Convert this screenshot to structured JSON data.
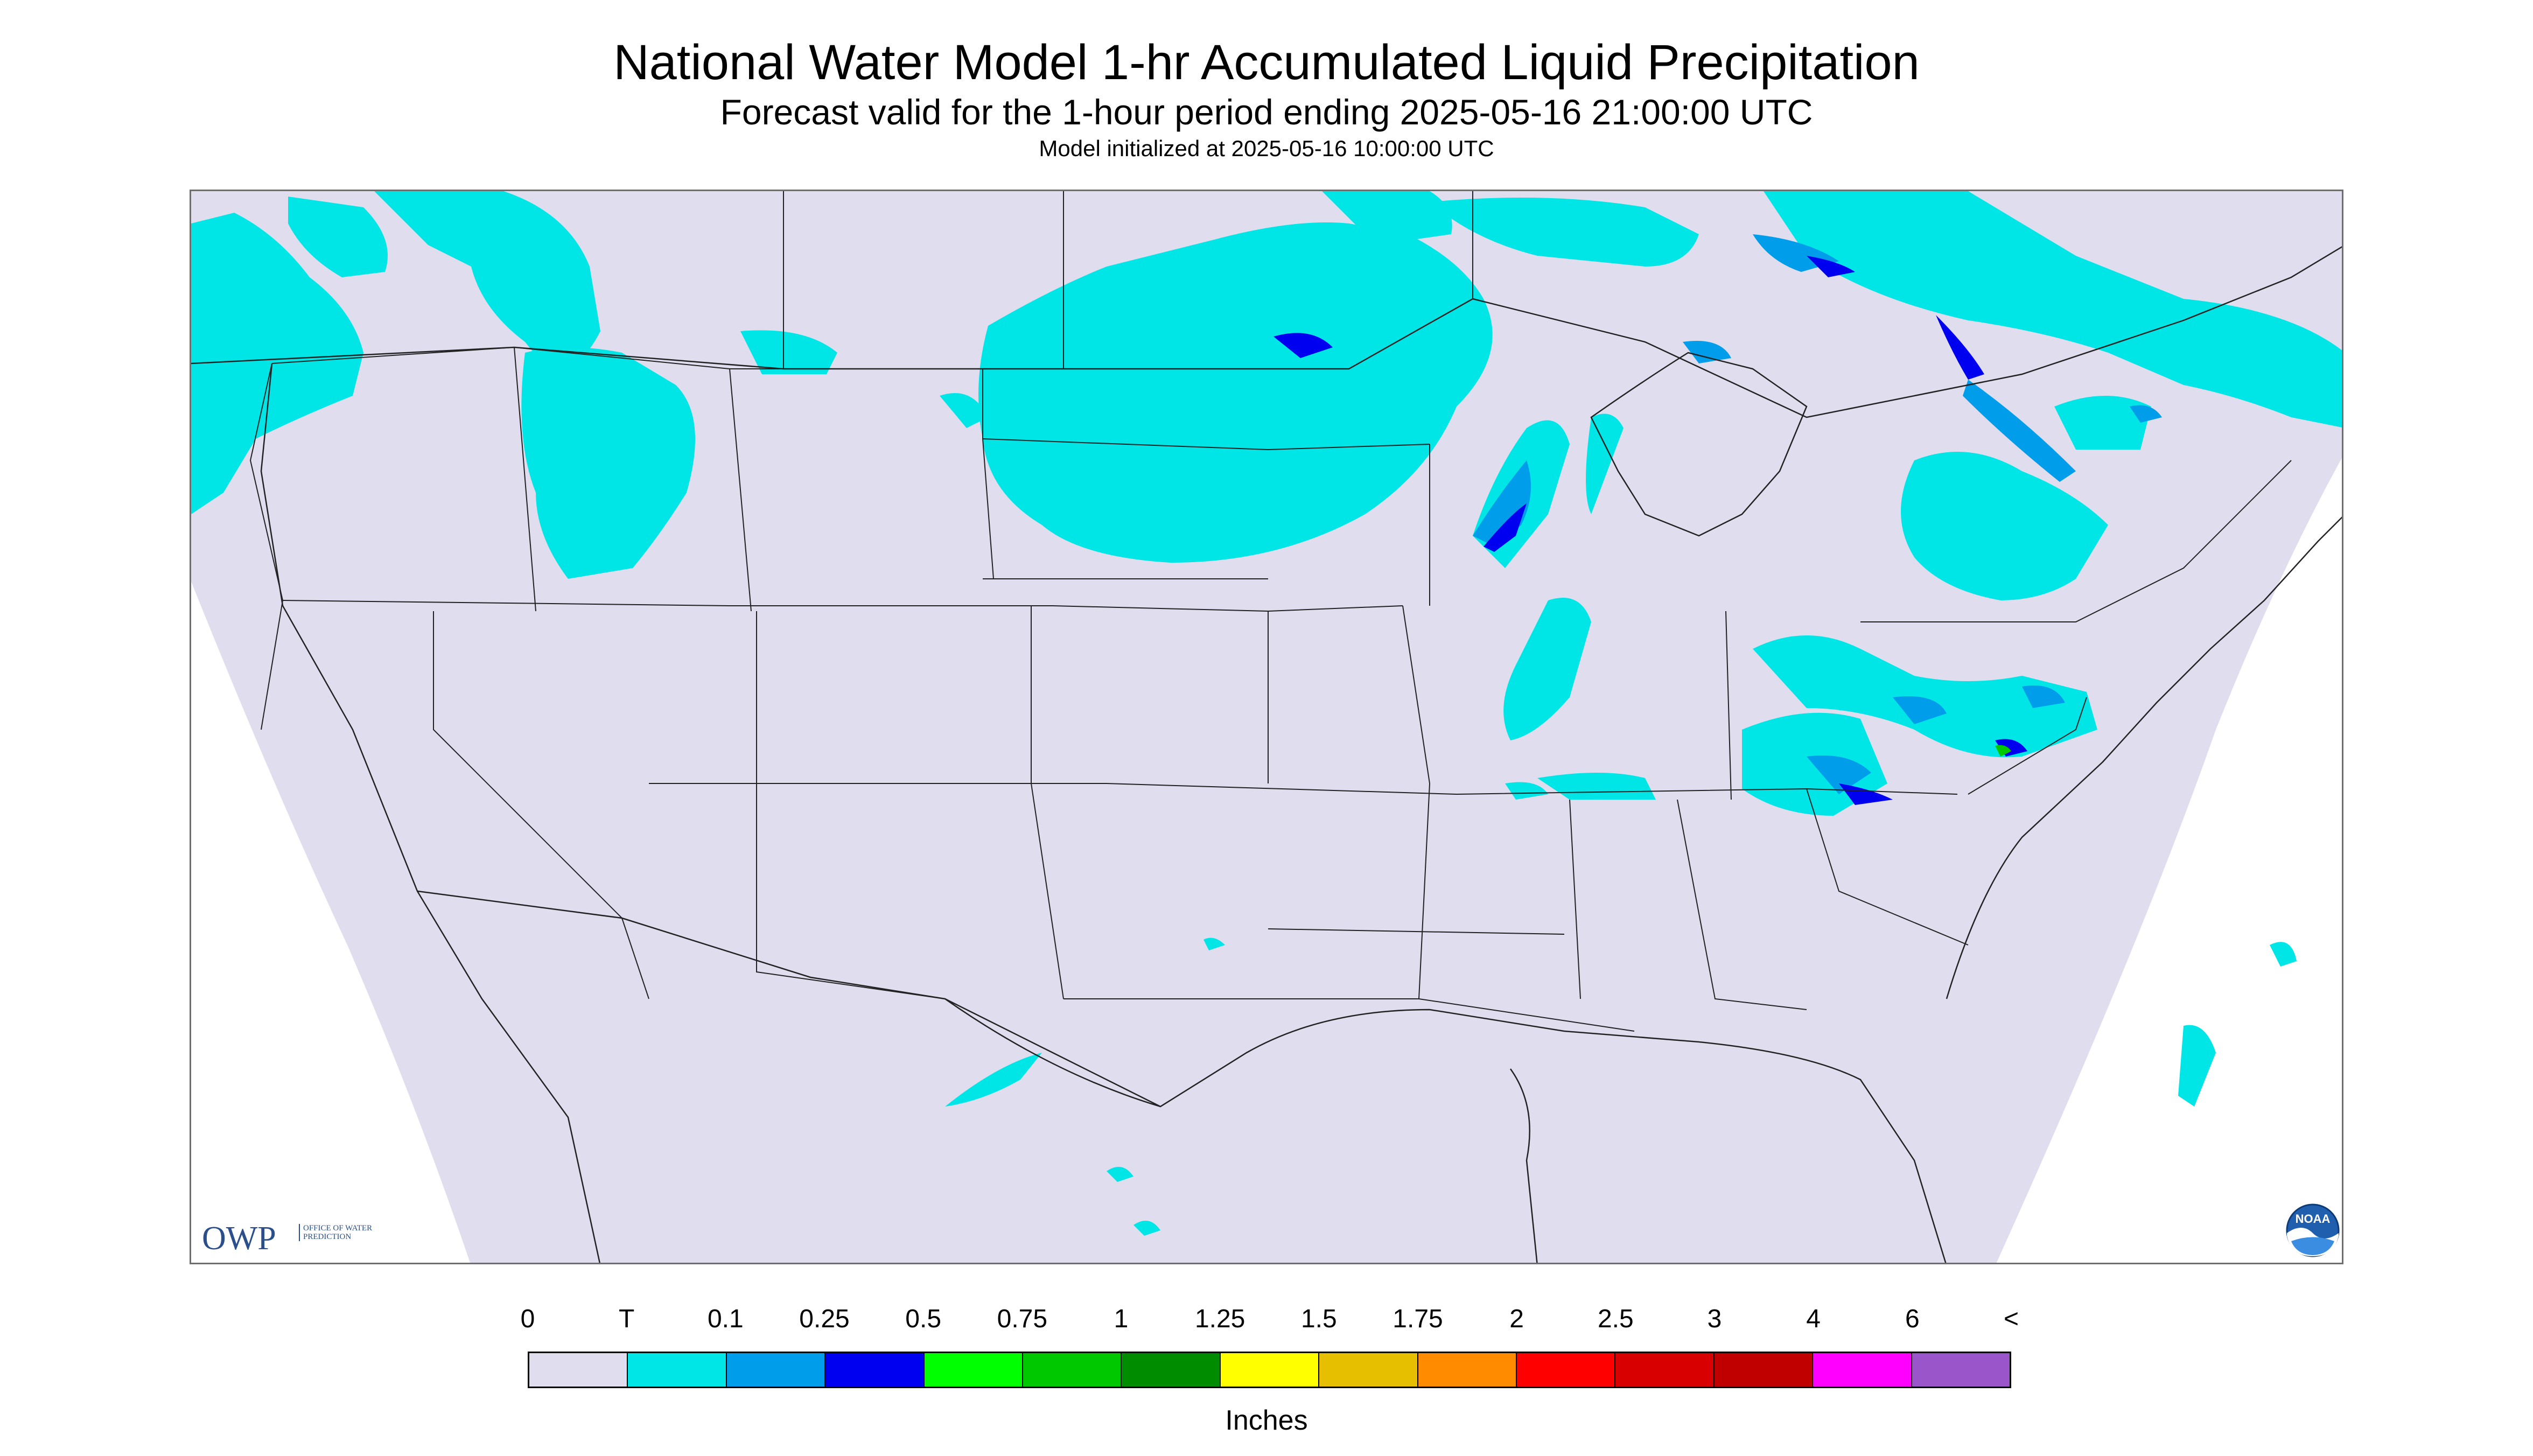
{
  "header": {
    "title": "National Water Model 1-hr Accumulated Liquid Precipitation",
    "subtitle": "Forecast valid for the 1-hour period ending 2025-05-16 21:00:00 UTC",
    "init_line": "Model initialized at 2025-05-16 10:00:00 UTC"
  },
  "logos": {
    "owp_text": "OWP",
    "owp_subtext": "OFFICE OF WATER PREDICTION",
    "noaa_text": "NOAA"
  },
  "chart_data": {
    "type": "heatmap",
    "map_region": "CONUS",
    "colorbar": {
      "ticks": [
        "0",
        "T",
        "0.1",
        "0.25",
        "0.5",
        "0.75",
        "1",
        "1.25",
        "1.5",
        "1.75",
        "2",
        "2.5",
        "3",
        "4",
        "6",
        "<"
      ],
      "colors": [
        "#e0ddef",
        "#00e6e6",
        "#009eea",
        "#0000f0",
        "#00ff00",
        "#00c800",
        "#008c00",
        "#ffff00",
        "#e6c000",
        "#ff8c00",
        "#ff0000",
        "#d80000",
        "#c00000",
        "#ff00ff",
        "#9955c9"
      ],
      "units": "Inches"
    }
  }
}
